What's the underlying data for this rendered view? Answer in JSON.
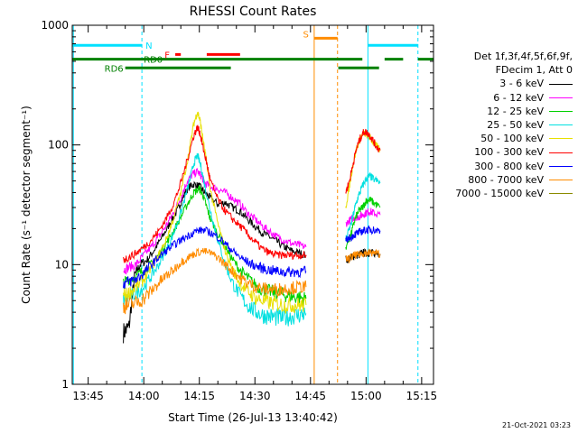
{
  "chart_data": {
    "type": "line",
    "title": "RHESSI Count Rates",
    "xlabel": "Start Time (26-Jul-13 13:40:42)",
    "ylabel": "Count Rate (s⁻¹ detector segment⁻¹)",
    "y_scale": "log",
    "ylim": [
      1,
      1000
    ],
    "xlim_minutes_after_1340": [
      0.7,
      98.2
    ],
    "x_ticks": [
      "13:45",
      "14:00",
      "14:15",
      "14:30",
      "14:45",
      "15:00",
      "15:15"
    ],
    "x_tick_minutes": [
      5,
      20,
      35,
      50,
      65,
      80,
      95
    ],
    "y_ticks": [
      "1",
      "10",
      "100",
      "1000"
    ],
    "y_tick_values": [
      1,
      10,
      100,
      1000
    ],
    "grid": false,
    "legend_position": "right, outside plot",
    "legend_header": [
      "Det 1f,3f,4f,5f,6f,9f,",
      "FDecim 1, Att 0"
    ],
    "series": [
      {
        "name": "3 - 6 keV",
        "color": "#000000",
        "segments": [
          {
            "x": [
              14.5,
              16,
              17.5,
              19,
              21,
              23,
              25,
              27,
              29,
              30.5,
              32,
              33.5,
              35,
              36.5,
              38,
              40,
              42,
              44,
              46,
              48,
              50,
              52,
              54,
              56,
              58,
              60,
              62,
              63.8
            ],
            "y": [
              2.7,
              3.0,
              8,
              10,
              11,
              13.5,
              17,
              22,
              28,
              36,
              44,
              47,
              45,
              40,
              36,
              32,
              33,
              30,
              28,
              24,
              21,
              18.5,
              17,
              15.5,
              14,
              13,
              12.5,
              12
            ]
          },
          {
            "x": [
              74.5,
              76,
              77,
              78,
              79,
              80,
              81,
              82,
              83.8
            ],
            "y": [
              11,
              11.5,
              12,
              12,
              12.5,
              12.5,
              12.5,
              12.5,
              12.3
            ]
          }
        ]
      },
      {
        "name": "6 - 12 keV",
        "color": "#ff00ff",
        "segments": [
          {
            "x": [
              14.5,
              16,
              18,
              20,
              22,
              24,
              26,
              28,
              30,
              31.5,
              33,
              34.5,
              35.5,
              36.5,
              38,
              40,
              42,
              44,
              46,
              48,
              50,
              52,
              54,
              56,
              58,
              60,
              62,
              63.8
            ],
            "y": [
              9,
              9.5,
              10,
              12,
              14,
              17,
              21,
              27,
              36,
              48,
              56,
              60,
              55,
              48,
              45,
              43,
              40,
              36,
              32,
              27,
              24,
              21,
              19,
              17,
              16,
              15,
              14.5,
              14
            ]
          },
          {
            "x": [
              74.5,
              76,
              77,
              78,
              79,
              80,
              81,
              82,
              83.8
            ],
            "y": [
              22,
              24,
              25,
              25,
              26,
              27,
              28,
              27,
              26
            ]
          }
        ]
      },
      {
        "name": "12 - 25 keV",
        "color": "#00d000",
        "segments": [
          {
            "x": [
              14.5,
              16,
              18,
              20,
              22,
              24,
              26,
              28,
              30,
              32,
              33.5,
              35,
              36,
              37,
              38,
              40,
              42,
              44,
              46,
              48,
              50,
              52,
              54,
              56,
              58,
              60,
              62,
              63.8
            ],
            "y": [
              7,
              7.5,
              8,
              9,
              10,
              12,
              15,
              19,
              25,
              33,
              40,
              43,
              38,
              30,
              24,
              18,
              14,
              11,
              9,
              7.8,
              6.8,
              6.2,
              6,
              5.8,
              5.6,
              5.4,
              5.3,
              5.2
            ]
          },
          {
            "x": [
              74.5,
              76,
              77,
              78,
              79,
              80,
              81,
              82,
              83.8
            ],
            "y": [
              14,
              18,
              24,
              28,
              30,
              34,
              35,
              33,
              30
            ]
          }
        ]
      },
      {
        "name": "25 - 50 keV",
        "color": "#00e0e0",
        "segments": [
          {
            "x": [
              14.5,
              16,
              18,
              20,
              22,
              24,
              26,
              28,
              30,
              32,
              33.5,
              34.5,
              35.5,
              36.5,
              38,
              40,
              42,
              44,
              46,
              48,
              50,
              52,
              54,
              56,
              58,
              60,
              62,
              63.8
            ],
            "y": [
              5,
              5.3,
              5.8,
              6.5,
              8,
              10,
              13,
              18,
              27,
              45,
              70,
              82,
              65,
              45,
              28,
              16,
              10,
              7,
              5.5,
              4.6,
              4.1,
              3.8,
              3.7,
              3.6,
              3.6,
              3.7,
              3.8,
              3.9
            ]
          },
          {
            "x": [
              74.5,
              76,
              77,
              78,
              79,
              80,
              81,
              82,
              83.8
            ],
            "y": [
              16,
              22,
              30,
              38,
              45,
              52,
              55,
              52,
              48
            ]
          }
        ]
      },
      {
        "name": "50 - 100 keV",
        "color": "#e8e000",
        "segments": [
          {
            "x": [
              14.5,
              16,
              18,
              20,
              22,
              24,
              26,
              28,
              30,
              32,
              33.5,
              34.5,
              35.2,
              36,
              37,
              38,
              40,
              42,
              44,
              46,
              48,
              50,
              52,
              54,
              56,
              58,
              60,
              62,
              63.8
            ],
            "y": [
              5.5,
              5.8,
              6.5,
              7.5,
              9.5,
              12,
              16,
              24,
              40,
              80,
              150,
              190,
              160,
              110,
              70,
              42,
              22,
              13,
              9,
              7,
              6,
              5.3,
              5,
              4.8,
              4.7,
              4.6,
              4.6,
              4.6,
              4.6
            ]
          },
          {
            "x": [
              74.5,
              75.5,
              76.5,
              77.5,
              78.5,
              79.5,
              80.5,
              81.5,
              82.5,
              83.8
            ],
            "y": [
              30,
              45,
              70,
              95,
              115,
              125,
              120,
              110,
              100,
              90
            ]
          }
        ]
      },
      {
        "name": "100 - 300 keV",
        "color": "#ff0000",
        "segments": [
          {
            "x": [
              14.5,
              16,
              18,
              20,
              22,
              24,
              26,
              28,
              30,
              32,
              33.5,
              34.5,
              35.2,
              36,
              37,
              38,
              40,
              42,
              44,
              46,
              48,
              50,
              52,
              54,
              56,
              58,
              60,
              62,
              63.8
            ],
            "y": [
              11,
              11.5,
              12.5,
              14,
              16,
              19,
              24,
              32,
              48,
              80,
              120,
              140,
              125,
              95,
              70,
              50,
              35,
              28,
              24,
              21,
              18,
              15.5,
              13.5,
              12.5,
              12,
              12,
              12,
              12,
              12
            ]
          },
          {
            "x": [
              74.5,
              75.5,
              76.5,
              77.5,
              78.5,
              79.5,
              80.5,
              81.5,
              82.5,
              83.8
            ],
            "y": [
              40,
              50,
              70,
              95,
              115,
              130,
              125,
              115,
              100,
              90
            ]
          }
        ]
      },
      {
        "name": "300 - 800 keV",
        "color": "#0000ff",
        "segments": [
          {
            "x": [
              14.5,
              16,
              18,
              20,
              22,
              24,
              26,
              28,
              30,
              32,
              34,
              36,
              38,
              40,
              42,
              44,
              46,
              48,
              50,
              52,
              54,
              56,
              58,
              60,
              62,
              63.8
            ],
            "y": [
              7,
              7.2,
              7.6,
              8.5,
              10,
              11.5,
              13,
              14.5,
              16,
              17.5,
              19,
              19.5,
              18.5,
              17,
              15,
              13,
              11.5,
              10.5,
              9.8,
              9.3,
              9,
              8.8,
              8.7,
              8.7,
              8.7,
              8.8
            ]
          },
          {
            "x": [
              74.5,
              76,
              77,
              78,
              79,
              80,
              81,
              82,
              83.8
            ],
            "y": [
              16,
              17,
              18,
              18.5,
              19,
              19.5,
              19.5,
              19.5,
              19.2
            ]
          }
        ]
      },
      {
        "name": "800 - 7000 keV",
        "color": "#ff8c00",
        "segments": [
          {
            "x": [
              14.5,
              16,
              18,
              20,
              22,
              24,
              26,
              28,
              30,
              32,
              34,
              36,
              38,
              40,
              42,
              44,
              46,
              48,
              50,
              52,
              54,
              56,
              58,
              60,
              62,
              63.8
            ],
            "y": [
              4.5,
              4.6,
              4.8,
              5.2,
              6,
              7,
              8,
              9,
              10.5,
              11.5,
              12.5,
              13,
              12.5,
              11.5,
              10,
              8.8,
              7.8,
              7,
              6.6,
              6.3,
              6.2,
              6.2,
              6.3,
              6.4,
              6.5,
              6.5
            ]
          },
          {
            "x": [
              74.5,
              76,
              77,
              78,
              79,
              80,
              81,
              82,
              83.8
            ],
            "y": [
              11,
              11.5,
              12,
              12,
              12.5,
              12.5,
              12.5,
              12.5,
              12.3
            ]
          }
        ]
      },
      {
        "name": "7000 - 15000 keV",
        "color": "#8b8b00",
        "segments": []
      }
    ],
    "state_bars": [
      {
        "label": "N",
        "color": "#00e0ff",
        "y": 680,
        "segments": [
          [
            0.7,
            19.5
          ],
          [
            80.5,
            94
          ]
        ]
      },
      {
        "label": "RD0",
        "color": "#008000",
        "y": 520,
        "segments": [
          [
            0.7,
            79
          ],
          [
            85,
            90
          ],
          [
            94,
            98.2
          ]
        ]
      },
      {
        "label": "F",
        "color": "#ff0000",
        "y": 570,
        "segments": [
          [
            28.5,
            30
          ],
          [
            37,
            46
          ]
        ]
      },
      {
        "label": "RD6",
        "color": "#008000",
        "y": 440,
        "segments": [
          [
            15,
            43.5
          ],
          [
            72.5,
            83.5
          ]
        ]
      },
      {
        "label": "S",
        "color": "#ff8c00",
        "y": 780,
        "segments": [
          [
            66,
            72.3
          ]
        ]
      }
    ],
    "vertical_lines": [
      {
        "x": 1,
        "color": "#00e0ff",
        "style": "solid"
      },
      {
        "x": 19.5,
        "color": "#00e0ff",
        "style": "dashed"
      },
      {
        "x": 66,
        "color": "#ff8c00",
        "style": "solid"
      },
      {
        "x": 72.3,
        "color": "#ff8c00",
        "style": "dashed"
      },
      {
        "x": 80.5,
        "color": "#00e0ff",
        "style": "solid"
      },
      {
        "x": 94,
        "color": "#00e0ff",
        "style": "dashed"
      }
    ]
  },
  "timestamp": "21-Oct-2021 03:23"
}
